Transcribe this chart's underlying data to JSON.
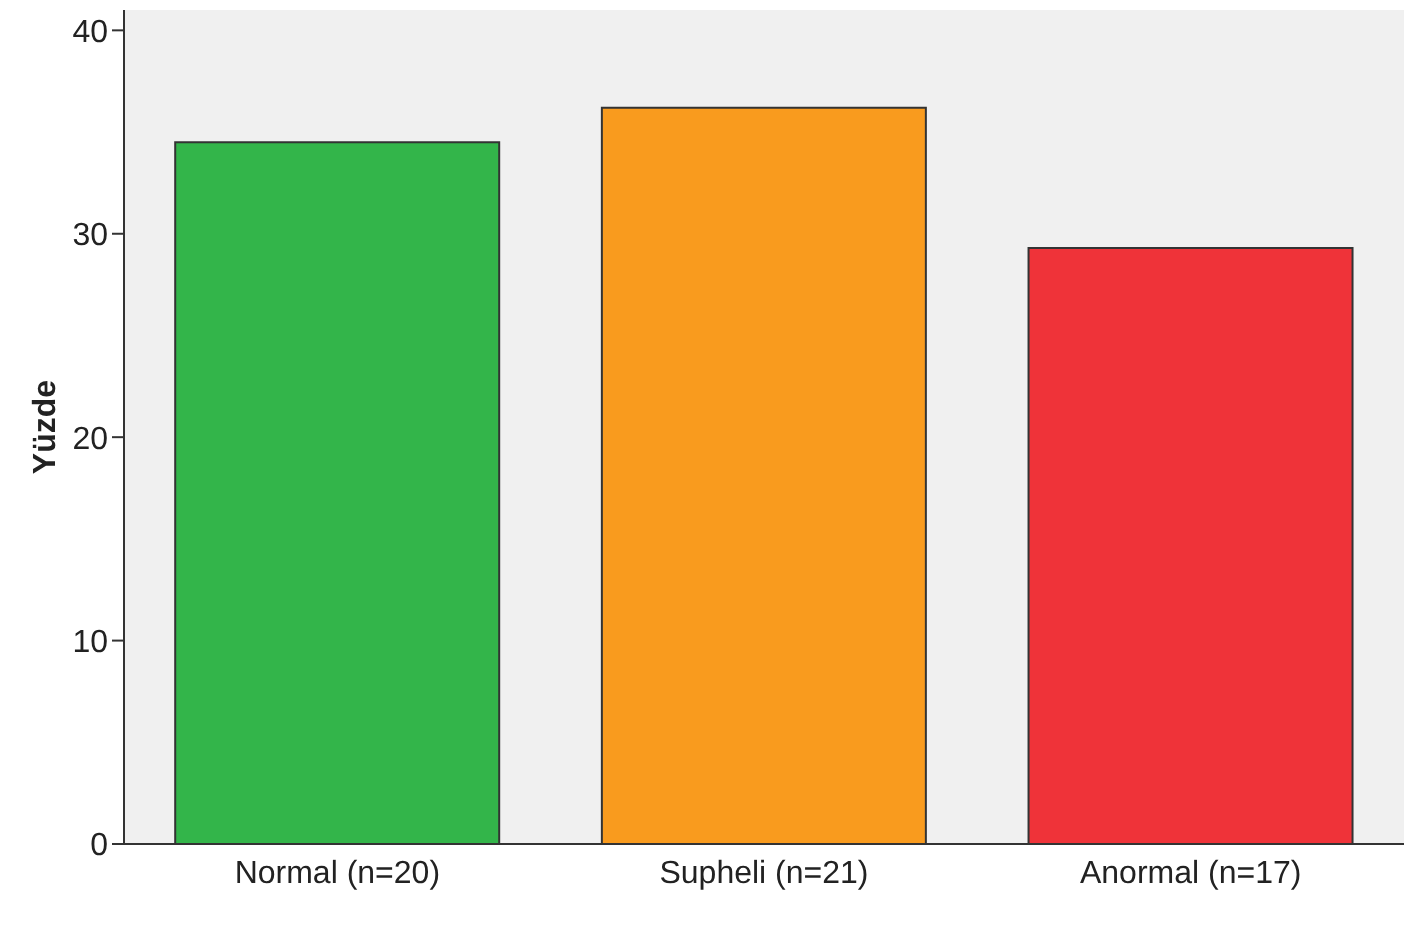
{
  "chart_data": {
    "type": "bar",
    "ylabel": "Yüzde",
    "categories": [
      "Normal (n=20)",
      "Supheli (n=21)",
      "Anormal (n=17)"
    ],
    "values": [
      34.5,
      36.2,
      29.3
    ],
    "colors": [
      "#33b54a",
      "#f99b1e",
      "#ef3339"
    ],
    "ylim": [
      0,
      41
    ],
    "yticks": [
      0,
      10,
      20,
      30,
      40
    ],
    "grid": false,
    "legend": false
  }
}
